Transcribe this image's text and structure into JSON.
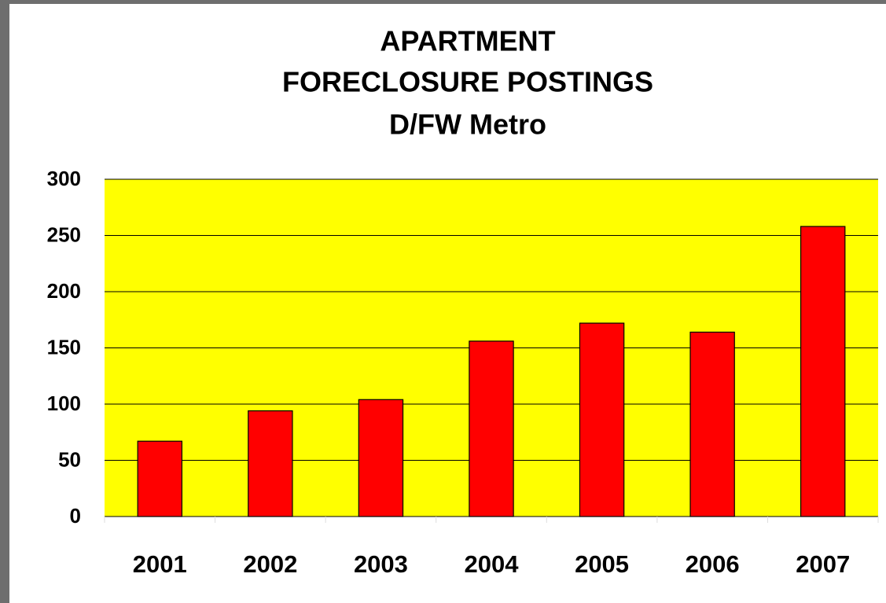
{
  "chart_data": {
    "type": "bar",
    "title": [
      "APARTMENT",
      "FORECLOSURE POSTINGS"
    ],
    "subtitle": "D/FW Metro",
    "categories": [
      "2001",
      "2002",
      "2003",
      "2004",
      "2005",
      "2006",
      "2007"
    ],
    "values": [
      67,
      94,
      104,
      156,
      172,
      164,
      258
    ],
    "color": "#ff0000",
    "plot_background": "#ffff00",
    "ylim": [
      0,
      300
    ],
    "yticks": [
      0,
      50,
      100,
      150,
      200,
      250,
      300
    ],
    "grid": true
  }
}
